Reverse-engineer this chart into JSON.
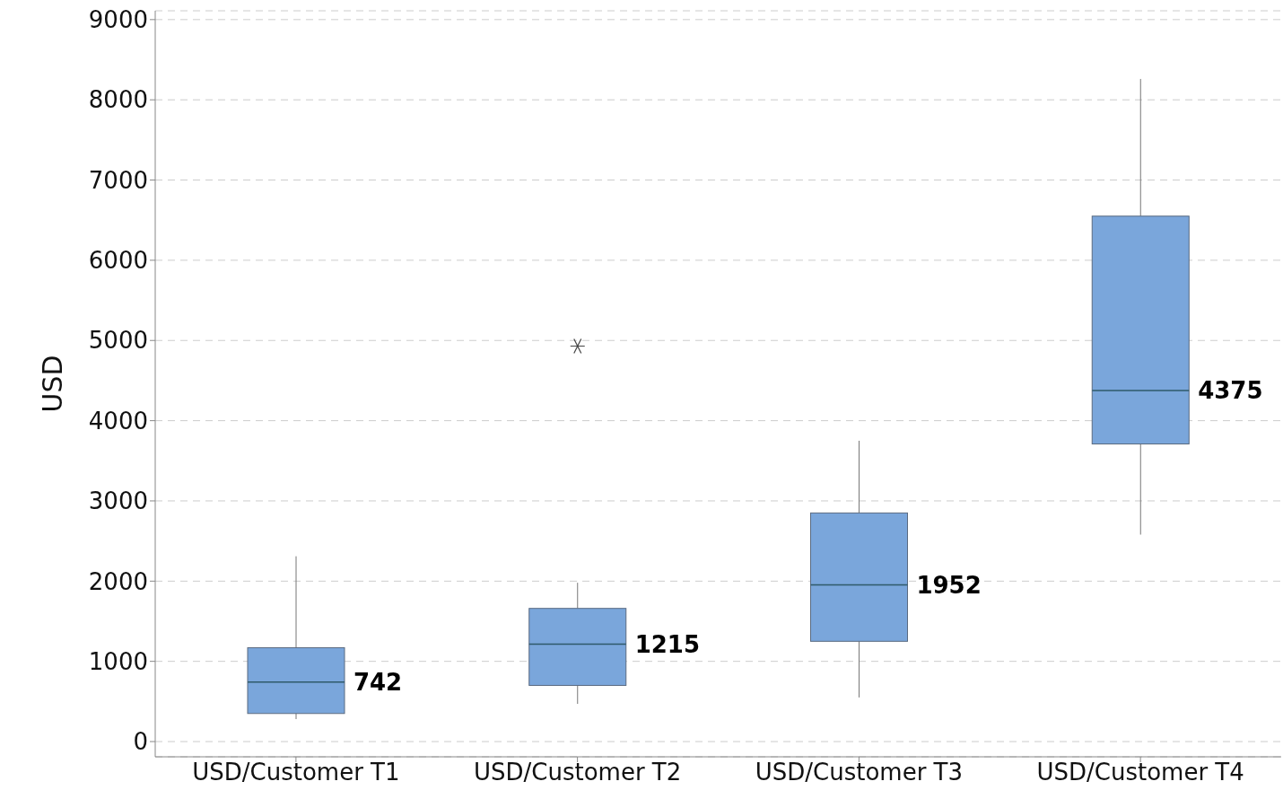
{
  "chart_data": {
    "type": "box",
    "ylabel": "USD",
    "categories": [
      "USD/Customer T1",
      "USD/Customer T2",
      "USD/Customer T3",
      "USD/Customer T4"
    ],
    "boxes": [
      {
        "low": 280,
        "q1": 350,
        "median": 742,
        "q3": 1170,
        "high": 2310
      },
      {
        "low": 470,
        "q1": 700,
        "median": 1215,
        "q3": 1660,
        "high": 1980,
        "outliers": [
          4930
        ]
      },
      {
        "low": 550,
        "q1": 1250,
        "median": 1952,
        "q3": 2850,
        "high": 3750
      },
      {
        "low": 2580,
        "q1": 3710,
        "median": 4375,
        "q3": 6550,
        "high": 8260
      }
    ],
    "color": "#7aa6db",
    "ylim": [
      -190,
      9110
    ],
    "yticks": [
      0,
      1000,
      2000,
      3000,
      4000,
      5000,
      6000,
      7000,
      8000,
      9000
    ],
    "grid": "y",
    "annotations": [
      {
        "text": "742",
        "x": "USD/Customer T1",
        "y": 742
      },
      {
        "text": "1215",
        "x": "USD/Customer T2",
        "y": 1215
      },
      {
        "text": "1952",
        "x": "USD/Customer T3",
        "y": 1952
      },
      {
        "text": "4375",
        "x": "USD/Customer T4",
        "y": 4375
      }
    ]
  }
}
